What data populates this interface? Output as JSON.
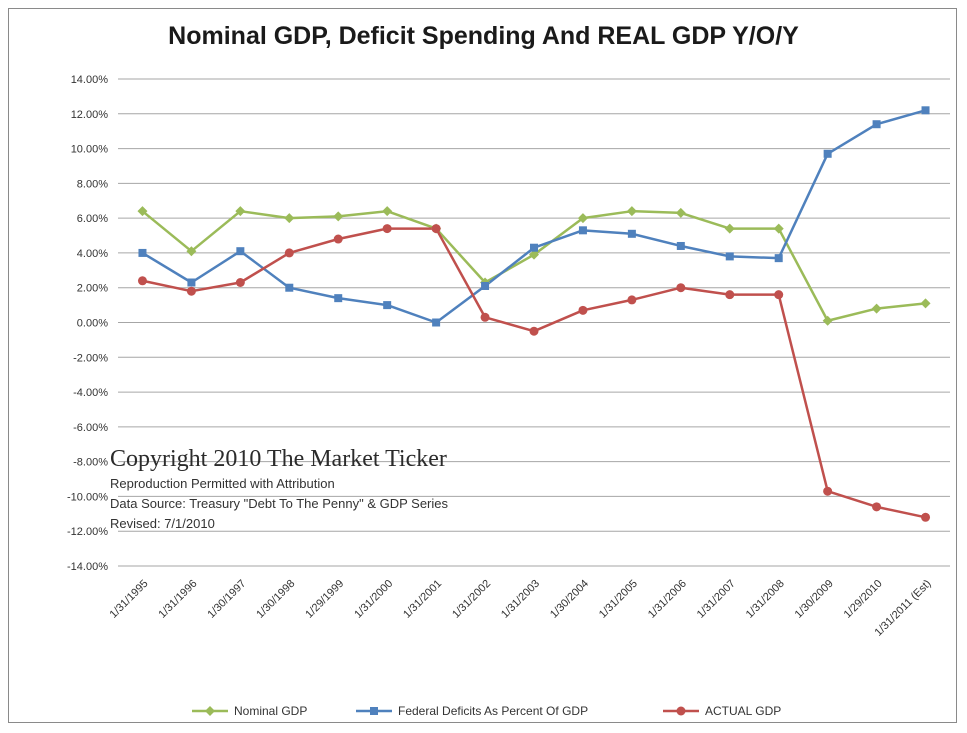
{
  "chart_data": {
    "type": "line",
    "title": "Nominal GDP, Deficit Spending And REAL GDP Y/O/Y",
    "xlabel": "",
    "ylabel": "",
    "ylim": [
      -14,
      14
    ],
    "y_ticks": [
      "14.00%",
      "12.00%",
      "10.00%",
      "8.00%",
      "6.00%",
      "4.00%",
      "2.00%",
      "0.00%",
      "-2.00%",
      "-4.00%",
      "-6.00%",
      "-8.00%",
      "-10.00%",
      "-12.00%",
      "-14.00%"
    ],
    "grid": "horizontal",
    "legend_position": "bottom",
    "categories": [
      "1/31/1995",
      "1/31/1996",
      "1/30/1997",
      "1/30/1998",
      "1/29/1999",
      "1/31/2000",
      "1/31/2001",
      "1/31/2002",
      "1/31/2003",
      "1/30/2004",
      "1/31/2005",
      "1/31/2006",
      "1/31/2007",
      "1/31/2008",
      "1/30/2009",
      "1/29/2010",
      "1/31/2011 (Est)"
    ],
    "series": [
      {
        "name": "Nominal GDP",
        "color": "#9bbb59",
        "marker": "diamond",
        "values": [
          6.4,
          4.1,
          6.4,
          6.0,
          6.1,
          6.4,
          5.4,
          2.3,
          3.9,
          6.0,
          6.4,
          6.3,
          5.4,
          5.4,
          0.1,
          0.8,
          1.1
        ]
      },
      {
        "name": "Federal Deficits As Percent Of GDP",
        "color": "#4f81bd",
        "marker": "square",
        "values": [
          4.0,
          2.3,
          4.1,
          2.0,
          1.4,
          1.0,
          0.0,
          2.1,
          4.3,
          5.3,
          5.1,
          4.4,
          3.8,
          3.7,
          9.7,
          11.4,
          12.2
        ]
      },
      {
        "name": "ACTUAL GDP",
        "color": "#c0504d",
        "marker": "circle",
        "values": [
          2.4,
          1.8,
          2.3,
          4.0,
          4.8,
          5.4,
          5.4,
          0.3,
          -0.5,
          0.7,
          1.3,
          2.0,
          1.6,
          1.6,
          -9.7,
          -10.6,
          -11.2
        ]
      }
    ]
  },
  "notice": {
    "copyright": "Copyright 2010 The Market Ticker",
    "line1": "Reproduction Permitted with Attribution",
    "line2": "Data Source:  Treasury \"Debt To The Penny\" & GDP Series",
    "line3": "Revised: 7/1/2010"
  }
}
